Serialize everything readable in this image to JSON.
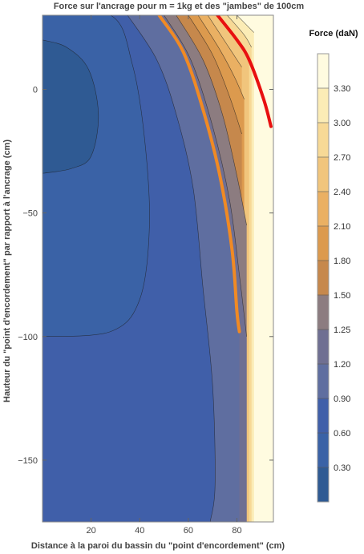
{
  "chart_data": {
    "type": "heatmap",
    "title": "Force sur l'ancrage pour m = 1kg et des \"jambes\" de 100cm",
    "xlabel": "Distance à la paroi du bassin du \"point d'encordement\" (cm)",
    "ylabel": "Hauteur du \"point d'encordement\" par rapport à l'ancrage (cm)",
    "xlim": [
      0,
      95
    ],
    "ylim": [
      -175,
      30
    ],
    "x_ticks": [
      20,
      40,
      60,
      80
    ],
    "y_ticks": [
      0,
      -50,
      -100,
      -150
    ],
    "legend_title": "Force (daN)",
    "legend_levels": [
      "0.30",
      "0.60",
      "0.90",
      "1.20",
      "1.25",
      "1.50",
      "1.80",
      "2.10",
      "2.40",
      "2.70",
      "3.00",
      "3.30"
    ],
    "legend_colors": [
      "#2f5a93",
      "#3a62a6",
      "#405fa9",
      "#5f6ea0",
      "#6f6f92",
      "#8c7c80",
      "#c6884c",
      "#dc9a4e",
      "#eab063",
      "#f1c57c",
      "#f7d996",
      "#fbecb6",
      "#fffbe0"
    ],
    "contours": [
      {
        "level": 0.3,
        "points": [
          [
            0,
            20
          ],
          [
            10,
            17
          ],
          [
            19,
            8
          ],
          [
            23,
            -10
          ],
          [
            20,
            -27
          ],
          [
            12,
            -32
          ],
          [
            0,
            -34
          ]
        ]
      },
      {
        "level": 0.6,
        "points": [
          [
            0,
            30
          ],
          [
            28,
            30
          ],
          [
            37,
            10
          ],
          [
            42,
            -20
          ],
          [
            44,
            -55
          ],
          [
            40,
            -85
          ],
          [
            28,
            -98
          ],
          [
            0,
            -100
          ]
        ]
      },
      {
        "level": 0.9,
        "points": [
          [
            35,
            30
          ],
          [
            47,
            12
          ],
          [
            55,
            -10
          ],
          [
            62,
            -40
          ],
          [
            66,
            -80
          ],
          [
            70,
            -120
          ],
          [
            71,
            -160
          ],
          [
            69,
            -175
          ]
        ]
      },
      {
        "level": 1.2,
        "points": [
          [
            48,
            30
          ],
          [
            58,
            15
          ],
          [
            66,
            -8
          ],
          [
            73,
            -35
          ],
          [
            78,
            -65
          ],
          [
            80,
            -90
          ],
          [
            81,
            -98
          ]
        ]
      },
      {
        "level": 1.25,
        "points": [
          [
            50,
            30
          ],
          [
            61,
            12
          ],
          [
            70,
            -15
          ],
          [
            77,
            -45
          ],
          [
            81,
            -75
          ],
          [
            84,
            -100
          ]
        ]
      },
      {
        "level": 1.5,
        "points": [
          [
            55,
            30
          ],
          [
            66,
            12
          ],
          [
            74,
            -10
          ],
          [
            80,
            -35
          ],
          [
            84,
            -55
          ]
        ]
      },
      {
        "level": 1.8,
        "points": [
          [
            60,
            30
          ],
          [
            70,
            14
          ],
          [
            77,
            -3
          ],
          [
            82,
            -18
          ]
        ]
      },
      {
        "level": 2.1,
        "points": [
          [
            64,
            30
          ],
          [
            73,
            16
          ],
          [
            79,
            5
          ],
          [
            83,
            -4
          ]
        ]
      },
      {
        "level": 2.4,
        "points": [
          [
            68,
            30
          ],
          [
            76,
            18
          ],
          [
            82,
            9
          ]
        ]
      },
      {
        "level": 2.7,
        "points": [
          [
            72,
            30
          ],
          [
            80,
            20
          ],
          [
            85,
            12
          ]
        ]
      },
      {
        "level": 3.0,
        "points": [
          [
            76,
            30
          ],
          [
            83,
            22
          ],
          [
            86,
            17
          ]
        ]
      },
      {
        "level": 3.3,
        "points": [
          [
            80,
            30
          ],
          [
            85,
            25
          ],
          [
            87,
            23
          ]
        ]
      }
    ],
    "highlight_curves": [
      {
        "color": "#f08a24",
        "points": [
          [
            48,
            30
          ],
          [
            58,
            15
          ],
          [
            66,
            -8
          ],
          [
            73,
            -35
          ],
          [
            78,
            -65
          ],
          [
            80,
            -90
          ],
          [
            81,
            -98
          ]
        ]
      },
      {
        "color": "#e81010",
        "points": [
          [
            72,
            30
          ],
          [
            80,
            20
          ],
          [
            85,
            12
          ],
          [
            91,
            -4
          ],
          [
            94,
            -15
          ]
        ]
      }
    ]
  }
}
